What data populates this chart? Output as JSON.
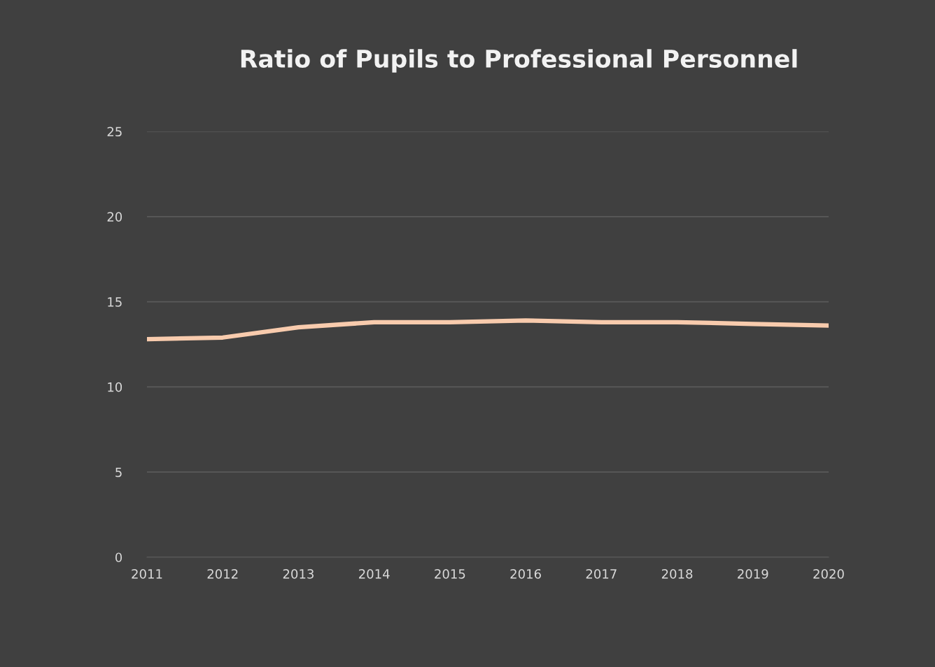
{
  "chart_data": {
    "type": "line",
    "title": "Ratio of Pupils to Professional Personnel",
    "categories": [
      "2011",
      "2012",
      "2013",
      "2014",
      "2015",
      "2016",
      "2017",
      "2018",
      "2019",
      "2020"
    ],
    "series": [
      {
        "color": "#f8cbad",
        "values": [
          12.8,
          12.9,
          13.5,
          13.8,
          13.8,
          13.9,
          13.8,
          13.8,
          13.7,
          13.6
        ]
      }
    ],
    "ylim": [
      0,
      25
    ],
    "yticks": [
      0,
      5,
      10,
      15,
      20,
      25
    ],
    "grid": "y",
    "marker": "none",
    "line_style": "solid"
  }
}
